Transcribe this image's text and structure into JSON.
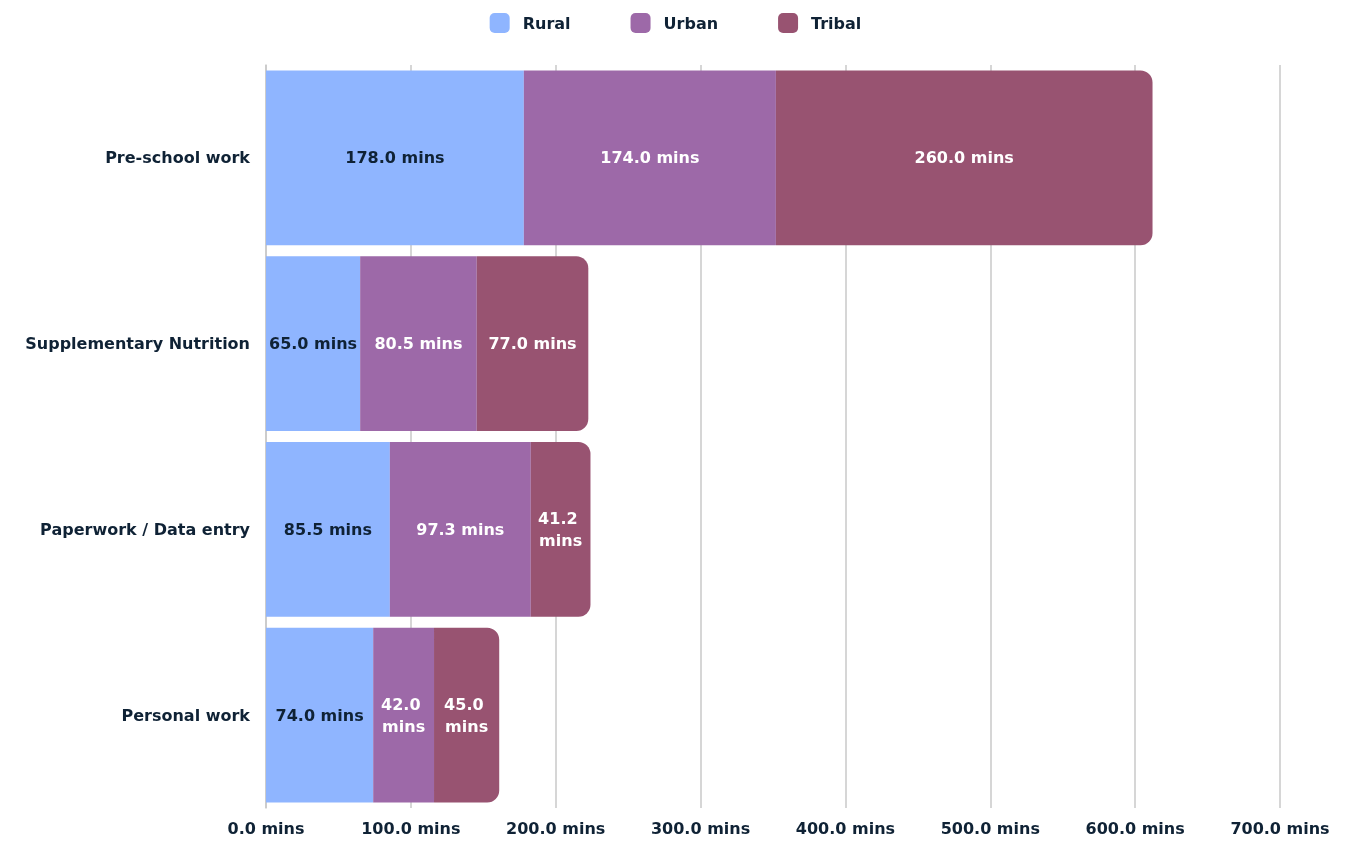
{
  "chart_data": {
    "type": "bar",
    "orientation": "horizontal",
    "stacked": true,
    "legend": "top",
    "grid": "x",
    "categories": [
      "Pre-school work",
      "Supplementary Nutrition",
      "Paperwork / Data entry",
      "Personal work"
    ],
    "xlim": [
      0,
      700
    ],
    "xticks": [
      {
        "value": 0,
        "label": "0.0 mins"
      },
      {
        "value": 100,
        "label": "100.0 mins"
      },
      {
        "value": 200,
        "label": "200.0 mins"
      },
      {
        "value": 300,
        "label": "300.0 mins"
      },
      {
        "value": 400,
        "label": "400.0 mins"
      },
      {
        "value": 500,
        "label": "500.0 mins"
      },
      {
        "value": 600,
        "label": "600.0 mins"
      },
      {
        "value": 700,
        "label": "700.0 mins"
      }
    ],
    "series": [
      {
        "name": "Rural",
        "color": "#8fb5ff",
        "values": [
          178,
          65,
          85.5,
          74
        ],
        "value_labels": [
          "178.0 mins",
          "65.0 mins",
          "85.5 mins",
          "74.0 mins"
        ]
      },
      {
        "name": "Urban",
        "color": "#9d69a8",
        "values": [
          174,
          80.5,
          97.3,
          42
        ],
        "value_labels": [
          "174.0 mins",
          "80.5 mins",
          "97.3 mins",
          "42.0 mins"
        ]
      },
      {
        "name": "Tribal",
        "color": "#985371",
        "values": [
          260,
          77,
          41.2,
          45
        ],
        "value_labels": [
          "260.0 mins",
          "77.0 mins",
          "41.2 mins",
          "45.0 mins"
        ]
      }
    ]
  }
}
